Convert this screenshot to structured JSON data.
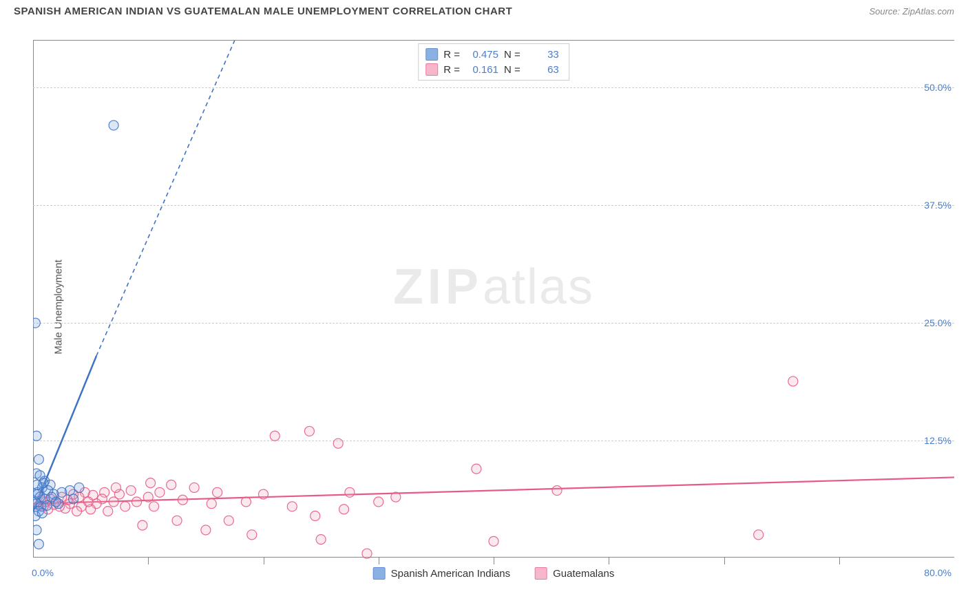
{
  "title": "SPANISH AMERICAN INDIAN VS GUATEMALAN MALE UNEMPLOYMENT CORRELATION CHART",
  "source": "Source: ZipAtlas.com",
  "y_axis_title": "Male Unemployment",
  "watermark_a": "ZIP",
  "watermark_b": "atlas",
  "chart": {
    "type": "scatter-with-regression",
    "background_color": "#ffffff",
    "grid_color": "#cccccc",
    "axis_color": "#888888",
    "tick_label_color": "#4a7ecb",
    "tick_fontsize": 14,
    "xlim": [
      0,
      80
    ],
    "ylim": [
      0,
      55
    ],
    "x_tick_step_minor": 10,
    "y_ticks": [
      12.5,
      25.0,
      37.5,
      50.0
    ],
    "y_tick_labels": [
      "12.5%",
      "25.0%",
      "37.5%",
      "50.0%"
    ],
    "x_origin_label": "0.0%",
    "x_max_label": "80.0%",
    "marker_radius": 7,
    "marker_fill_opacity": 0.25,
    "marker_stroke_opacity": 0.9,
    "marker_stroke_width": 1.2,
    "series": [
      {
        "name": "Spanish American Indians",
        "color": "#6f9ede",
        "stroke": "#3f73c3",
        "r_value": "0.475",
        "n_value": "33",
        "regression": {
          "x1": 0,
          "y1": 5.0,
          "x2_solid": 5.5,
          "y2_solid": 21.5,
          "x2_dash": 17.5,
          "y2_dash": 55.0,
          "width": 2.5,
          "dash": "6,5"
        },
        "points": [
          [
            0.2,
            25.0
          ],
          [
            7.0,
            46.0
          ],
          [
            0.3,
            13.0
          ],
          [
            0.5,
            10.5
          ],
          [
            0.3,
            9.0
          ],
          [
            1.0,
            8.2
          ],
          [
            0.8,
            7.5
          ],
          [
            1.5,
            7.8
          ],
          [
            0.4,
            7.0
          ],
          [
            0.6,
            6.5
          ],
          [
            0.2,
            6.0
          ],
          [
            1.0,
            6.3
          ],
          [
            1.8,
            6.8
          ],
          [
            2.5,
            7.0
          ],
          [
            3.2,
            7.2
          ],
          [
            4.0,
            7.5
          ],
          [
            0.3,
            5.8
          ],
          [
            0.7,
            5.5
          ],
          [
            1.2,
            5.6
          ],
          [
            0.5,
            5.0
          ],
          [
            0.2,
            4.5
          ],
          [
            0.8,
            4.8
          ],
          [
            0.3,
            3.0
          ],
          [
            0.5,
            1.5
          ],
          [
            2.0,
            6.0
          ],
          [
            3.5,
            6.3
          ],
          [
            1.3,
            7.2
          ],
          [
            0.9,
            8.0
          ],
          [
            0.6,
            8.8
          ],
          [
            1.6,
            6.5
          ],
          [
            0.4,
            6.8
          ],
          [
            2.2,
            5.8
          ],
          [
            0.35,
            7.8
          ]
        ]
      },
      {
        "name": "Guatemalans",
        "color": "#f4a6bd",
        "stroke": "#e65a87",
        "r_value": "0.161",
        "n_value": "63",
        "regression": {
          "x1": 0,
          "y1": 5.8,
          "x2_solid": 80,
          "y2_solid": 8.6,
          "width": 2.2
        },
        "points": [
          [
            66.0,
            18.8
          ],
          [
            63.0,
            2.5
          ],
          [
            38.5,
            9.5
          ],
          [
            45.5,
            7.2
          ],
          [
            40.0,
            1.8
          ],
          [
            31.5,
            6.5
          ],
          [
            30.0,
            6.0
          ],
          [
            29.0,
            0.5
          ],
          [
            27.0,
            5.2
          ],
          [
            27.5,
            7.0
          ],
          [
            26.5,
            12.2
          ],
          [
            25.0,
            2.0
          ],
          [
            24.0,
            13.5
          ],
          [
            24.5,
            4.5
          ],
          [
            22.5,
            5.5
          ],
          [
            21.0,
            13.0
          ],
          [
            20.0,
            6.8
          ],
          [
            19.0,
            2.5
          ],
          [
            18.5,
            6.0
          ],
          [
            17.0,
            4.0
          ],
          [
            16.0,
            7.0
          ],
          [
            15.0,
            3.0
          ],
          [
            15.5,
            5.8
          ],
          [
            14.0,
            7.5
          ],
          [
            13.0,
            6.2
          ],
          [
            12.5,
            4.0
          ],
          [
            12.0,
            7.8
          ],
          [
            11.0,
            7.0
          ],
          [
            10.5,
            5.5
          ],
          [
            10.0,
            6.5
          ],
          [
            10.2,
            8.0
          ],
          [
            9.5,
            3.5
          ],
          [
            9.0,
            6.0
          ],
          [
            8.5,
            7.2
          ],
          [
            8.0,
            5.5
          ],
          [
            7.5,
            6.8
          ],
          [
            7.2,
            7.5
          ],
          [
            7.0,
            6.0
          ],
          [
            6.5,
            5.0
          ],
          [
            6.2,
            7.0
          ],
          [
            6.0,
            6.3
          ],
          [
            5.5,
            5.8
          ],
          [
            5.2,
            6.7
          ],
          [
            5.0,
            5.2
          ],
          [
            4.8,
            6.0
          ],
          [
            4.5,
            7.0
          ],
          [
            4.2,
            5.5
          ],
          [
            4.0,
            6.5
          ],
          [
            3.8,
            5.0
          ],
          [
            3.5,
            6.8
          ],
          [
            3.2,
            5.8
          ],
          [
            3.0,
            6.2
          ],
          [
            2.8,
            5.3
          ],
          [
            2.5,
            6.5
          ],
          [
            2.3,
            5.5
          ],
          [
            2.0,
            6.0
          ],
          [
            1.8,
            5.7
          ],
          [
            1.5,
            6.3
          ],
          [
            1.3,
            5.2
          ],
          [
            1.1,
            6.0
          ],
          [
            0.9,
            5.5
          ],
          [
            0.7,
            6.2
          ],
          [
            0.5,
            5.6
          ]
        ]
      }
    ]
  },
  "legend_labels": {
    "series_a": "Spanish American Indians",
    "series_b": "Guatemalans"
  },
  "stats_box": {
    "r_label": "R =",
    "n_label": "N ="
  }
}
